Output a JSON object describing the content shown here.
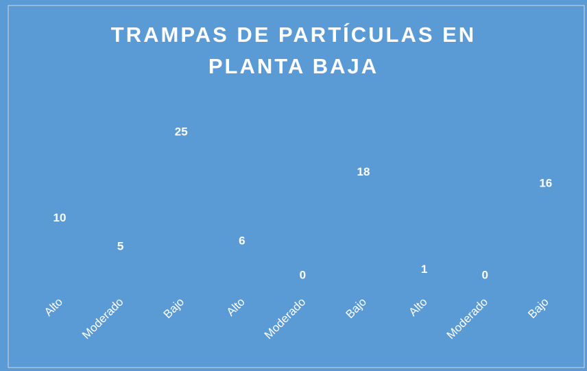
{
  "chart_data": {
    "type": "line",
    "title": "TRAMPAS DE PARTÍCULAS EN PLANTA BAJA",
    "categories": [
      "Alto",
      "Moderado",
      "Bajo",
      "Alto",
      "Moderado",
      "Bajo",
      "Alto",
      "Moderado",
      "Bajo"
    ],
    "values": [
      10,
      5,
      25,
      6,
      0,
      18,
      1,
      0,
      16
    ],
    "color": "#ffffff",
    "background": "#5b9bd5",
    "ylim": [
      0,
      25
    ]
  }
}
